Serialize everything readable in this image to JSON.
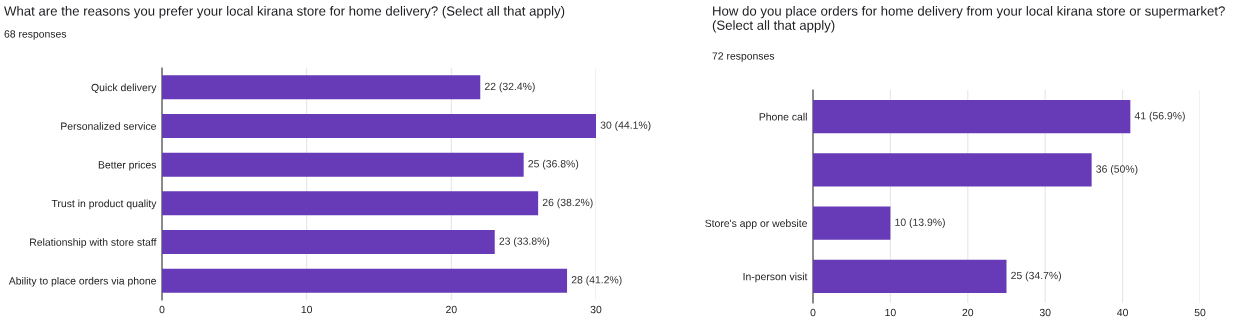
{
  "chart_data": [
    {
      "type": "bar",
      "orientation": "horizontal",
      "title": "What are the reasons you prefer your local kirana store for home delivery? (Select all that apply)",
      "subtitle": "68 responses",
      "categories": [
        "Quick delivery",
        "Personalized service",
        "Better prices",
        "Trust in product quality",
        "Relationship with store staff",
        "Ability to place orders via phone"
      ],
      "values": [
        22,
        30,
        25,
        26,
        23,
        28
      ],
      "color": "#673ab7",
      "value_labels": [
        "22 (32.4%)",
        "30 (44.1%)",
        "25 (36.8%)",
        "26 (38.2%)",
        "23 (33.8%)",
        "28 (41.2%)"
      ],
      "xlim": [
        0,
        30
      ],
      "xticks": [
        0,
        10,
        20,
        30
      ],
      "grid": "x"
    },
    {
      "type": "bar",
      "orientation": "horizontal",
      "title": "How do you place orders for home delivery from your local kirana store or supermarket? (Select all that apply)",
      "subtitle": "72 responses",
      "categories": [
        "Phone call",
        null,
        "Store's app or website",
        "In-person visit"
      ],
      "values": [
        41,
        36,
        10,
        25
      ],
      "color": "#673ab7",
      "value_labels": [
        "41 (56.9%)",
        "36 (50%)",
        "10 (13.9%)",
        "25 (34.7%)"
      ],
      "xlim": [
        0,
        50
      ],
      "xticks": [
        0,
        10,
        20,
        30,
        40,
        50
      ],
      "grid": "x"
    }
  ]
}
